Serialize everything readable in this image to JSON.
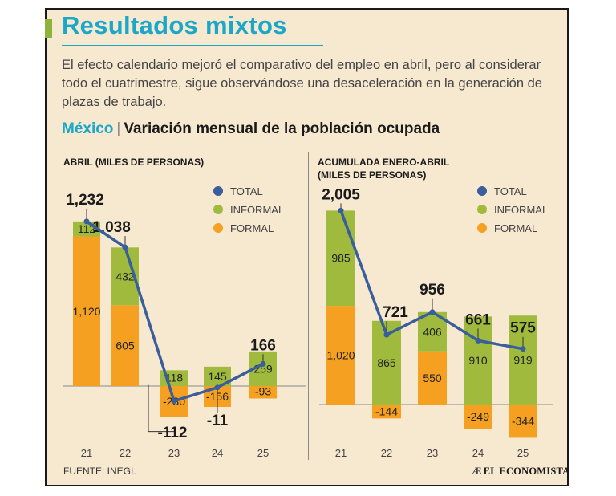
{
  "header": {
    "title": "Resultados mixtos",
    "description": "El efecto calendario mejoró el comparativo del empleo en abril, pero al considerar todo el cuatrimestre, sigue observándose una desaceleración en la generación de plazas de trabajo.",
    "country": "México",
    "separator": "|",
    "subtitle": "Variación mensual de la población ocupada"
  },
  "colors": {
    "total": "#3a5e9c",
    "informal": "#9fba3d",
    "formal": "#f5a021",
    "accent": "#1aa7c9",
    "background": "#f7e8d0"
  },
  "chart_data": [
    {
      "type": "bar",
      "title": "ABRIL (MILES DE PERSONAS)",
      "categories": [
        "21",
        "22",
        "23",
        "24",
        "25"
      ],
      "series": [
        {
          "name": "FORMAL",
          "values": [
            1120,
            605,
            -230,
            -156,
            -93
          ]
        },
        {
          "name": "INFORMAL",
          "values": [
            112,
            432,
            118,
            145,
            259
          ]
        },
        {
          "name": "TOTAL",
          "values": [
            1232,
            1038,
            -112,
            -11,
            166
          ]
        }
      ],
      "value_labels": {
        "formal": [
          "1,120",
          "605",
          "-230",
          "-156",
          "-93"
        ],
        "informal": [
          "112",
          "432",
          "118",
          "145",
          "259"
        ],
        "total": [
          "1,232",
          "1,038",
          "-112",
          "-11",
          "166"
        ]
      },
      "legend": [
        "TOTAL",
        "INFORMAL",
        "FORMAL"
      ],
      "legend_position": "top-right",
      "ylim": [
        -300,
        1300
      ]
    },
    {
      "type": "bar",
      "title": "ACUMULADA ENERO-ABRIL\n(MILES DE PERSONAS)",
      "categories": [
        "21",
        "22",
        "23",
        "24",
        "25"
      ],
      "series": [
        {
          "name": "FORMAL",
          "values": [
            1020,
            -144,
            550,
            -249,
            -344
          ]
        },
        {
          "name": "INFORMAL",
          "values": [
            985,
            865,
            406,
            910,
            919
          ]
        },
        {
          "name": "TOTAL",
          "values": [
            2005,
            721,
            956,
            661,
            575
          ]
        }
      ],
      "value_labels": {
        "formal": [
          "1,020",
          "-144",
          "550",
          "-249",
          "-344"
        ],
        "informal": [
          "985",
          "865",
          "406",
          "910",
          "919"
        ],
        "total": [
          "2,005",
          "721",
          "956",
          "661",
          "575"
        ]
      },
      "legend": [
        "TOTAL",
        "INFORMAL",
        "FORMAL"
      ],
      "legend_position": "top-right",
      "ylim": [
        -400,
        2100
      ]
    }
  ],
  "footer": {
    "source": "FUENTE: INEGI.",
    "brand_mark": "Æ",
    "brand": "EL ECONOMISTA"
  }
}
